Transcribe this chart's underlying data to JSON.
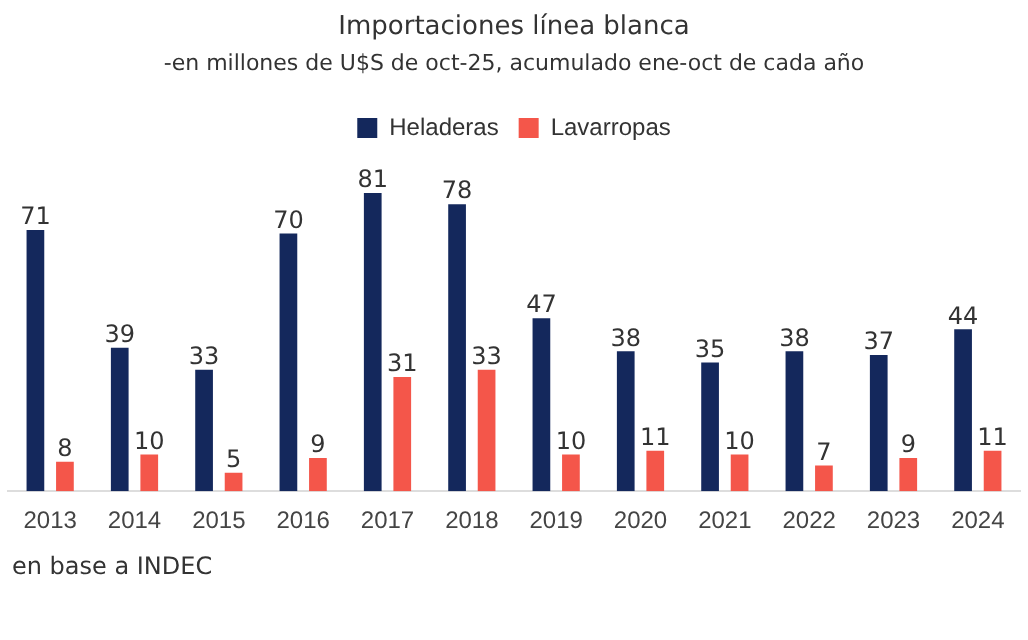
{
  "chart_data": {
    "type": "bar",
    "title": "Importaciones línea blanca",
    "subtitle": "-en millones de U$S de oct-25, acumulado ene-oct de cada año",
    "categories": [
      "2013",
      "2014",
      "2015",
      "2016",
      "2017",
      "2018",
      "2019",
      "2020",
      "2021",
      "2022",
      "2023",
      "2024"
    ],
    "series": [
      {
        "name": "Heladeras",
        "color": "#14285c",
        "values": [
          71,
          39,
          33,
          70,
          81,
          78,
          47,
          38,
          35,
          38,
          37,
          44
        ]
      },
      {
        "name": "Lavarropas",
        "color": "#f4564a",
        "values": [
          8,
          10,
          5,
          9,
          31,
          33,
          10,
          11,
          10,
          7,
          9,
          11
        ]
      }
    ],
    "data_labels": true,
    "legend": "top",
    "grid": false,
    "tick_labels": "x",
    "annotations": [
      "en base a INDEC"
    ]
  }
}
